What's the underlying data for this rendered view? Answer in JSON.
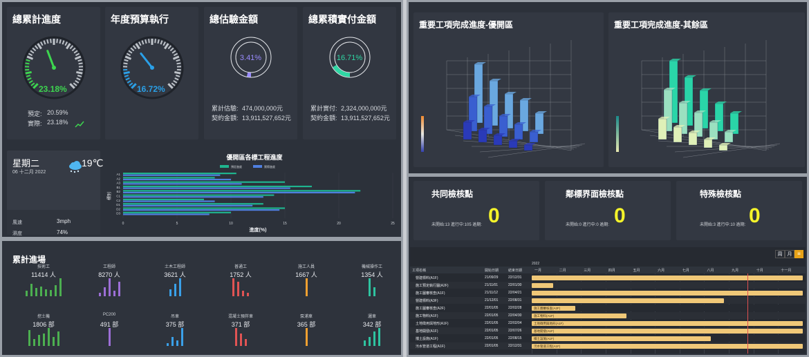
{
  "kpis": [
    {
      "title": "總累計進度",
      "value": "23.18%",
      "lines": [
        {
          "label": "預定:",
          "value": "20.59%"
        },
        {
          "label": "實際:",
          "value": "23.18%"
        }
      ]
    },
    {
      "title": "年度預算執行",
      "value": "16.72%"
    },
    {
      "title": "總估驗金額",
      "value": "3.41%",
      "lines": [
        {
          "label": "累計估驗:",
          "value": "474,000,000元"
        },
        {
          "label": "契約金額:",
          "value": "13,911,527,652元"
        }
      ]
    },
    {
      "title": "總累積實付金額",
      "value": "16.71%",
      "lines": [
        {
          "label": "累計實付:",
          "value": "2,324,000,000元"
        },
        {
          "label": "契約金額:",
          "value": "13,911,527,652元"
        }
      ]
    }
  ],
  "weather": {
    "weekday": "星期二",
    "date": "06 十二月 2022",
    "temp": "19℃",
    "rows": [
      {
        "label": "風速",
        "value": "3mph"
      },
      {
        "label": "濕度",
        "value": "74%"
      }
    ]
  },
  "bar_chart": {
    "title": "優開區各標工程進度",
    "legend": [
      "預定進度",
      "實際進度"
    ],
    "ylabel": "標別",
    "xlabel": "進度(%)",
    "ticks": [
      "0",
      "5",
      "10",
      "15",
      "20",
      "25"
    ],
    "categories": [
      "A1",
      "A2",
      "A3",
      "B1",
      "B2",
      "C1",
      "C2",
      "D1",
      "D2",
      "D3"
    ],
    "colors": {
      "planned": "#1fb48e",
      "actual": "#4f7fe0"
    }
  },
  "chart_data": {
    "type": "bar",
    "title": "優開區各標工程進度",
    "xlabel": "進度(%)",
    "ylabel": "標別",
    "categories": [
      "A1",
      "A2",
      "A3",
      "B1",
      "B2",
      "C1",
      "C2",
      "D1",
      "D2",
      "D3"
    ],
    "xlim": [
      0,
      25
    ],
    "series": [
      {
        "name": "預定進度",
        "values": [
          10.5,
          8.5,
          15,
          17.5,
          22,
          14,
          7.5,
          13,
          15,
          10
        ]
      },
      {
        "name": "實際進度",
        "values": [
          9,
          10,
          11,
          15.5,
          21.5,
          13,
          8.5,
          12,
          14.5,
          8
        ]
      }
    ]
  },
  "attendance": {
    "title": "累計進場",
    "items": [
      {
        "name": "技術工",
        "value": "11414 人",
        "bars": [
          0.3,
          0.7,
          0.45,
          0.55,
          0.4,
          0.35,
          0.6,
          1.0
        ],
        "color": "#4caf50"
      },
      {
        "name": "工程師",
        "value": "8270 人",
        "bars": [
          0.2,
          0.5,
          1.0,
          0.3,
          0.8
        ],
        "color": "#9c6fd6"
      },
      {
        "name": "土木工程師",
        "value": "3621 人",
        "bars": [
          0.4,
          0.7,
          1.0
        ],
        "color": "#3aa0e8"
      },
      {
        "name": "普通工",
        "value": "1752 人",
        "bars": [
          1.0,
          0.8,
          0.3,
          0.2
        ],
        "color": "#e05454"
      },
      {
        "name": "施工人員",
        "value": "1667 人",
        "bars": [
          1.0
        ],
        "color": "#f0a030"
      },
      {
        "name": "機械操作工",
        "value": "1354 人",
        "bars": [
          1.0,
          0.5
        ],
        "color": "#2ec3a0"
      },
      {
        "name": "挖土機",
        "value": "1806 部",
        "bars": [
          0.9,
          0.4,
          0.6,
          0.7,
          1.0,
          0.5,
          0.8
        ],
        "color": "#4caf50"
      },
      {
        "name": "PC200",
        "value": "491 部",
        "bars": [
          1.0
        ],
        "color": "#9c6fd6"
      },
      {
        "name": "吊車",
        "value": "375 部",
        "bars": [
          0.15,
          0.5,
          0.3,
          1.0
        ],
        "color": "#3aa0e8"
      },
      {
        "name": "混凝土預拌車",
        "value": "371 部",
        "bars": [
          1.0,
          0.7,
          0.4
        ],
        "color": "#e05454"
      },
      {
        "name": "泵浦車",
        "value": "365 部",
        "bars": [
          1.0
        ],
        "color": "#f0a030"
      },
      {
        "name": "灑車",
        "value": "342 部",
        "bars": [
          0.3,
          0.5,
          0.8,
          1.0
        ],
        "color": "#2ec3a0"
      }
    ]
  },
  "charts3d": [
    {
      "title": "重要工項完成進度-優開區",
      "scale": {
        "max": "75",
        "mid": "50",
        "low": "25",
        "zero": "0"
      }
    },
    {
      "title": "重要工項完成進度-其餘區",
      "scale": {
        "max": "75",
        "mid": "50",
        "low": "25",
        "zero": "0"
      }
    }
  ],
  "checkpoints": [
    {
      "title": "共同檢核點",
      "sub": "未開始:13  進行中:105  逾期:",
      "value": "0"
    },
    {
      "title": "鄰標界面檢核點",
      "sub": "未開始:0  進行中:0  逾期:",
      "value": "0"
    },
    {
      "title": "特殊檢核點",
      "sub": "未開始:3  進行中:10  逾期:",
      "value": "0"
    }
  ],
  "gantt": {
    "buttons": [
      "周",
      "月"
    ],
    "menu_icon": "≡",
    "year": "2022",
    "headers": [
      "工項名稱",
      "開始日期",
      "結束日期"
    ],
    "months": [
      "一月",
      "二月",
      "三月",
      "四月",
      "五月",
      "六月",
      "七月",
      "八月",
      "九月",
      "十月",
      "十一月"
    ],
    "rows": [
      {
        "name": "營建標料(A1F)",
        "start": "21/09/29",
        "end": "22/12/31",
        "bar_start": 0,
        "bar_end": 1.0,
        "label": ""
      },
      {
        "name": "施工預定執行圖(A2F)",
        "start": "21/11/01",
        "end": "22/01/30",
        "bar_start": 0,
        "bar_end": 0.08,
        "label": ""
      },
      {
        "name": "施工圖審核查(A1F)",
        "start": "21/11/12",
        "end": "22/04/21",
        "bar_start": 0,
        "bar_end": 1.0,
        "label": ""
      },
      {
        "name": "營建標料(A3F)",
        "start": "21/12/01",
        "end": "22/08/31",
        "bar_start": 0,
        "bar_end": 0.71,
        "label": ""
      },
      {
        "name": "施工圖審核查(A2F)",
        "start": "22/01/05",
        "end": "22/02/28",
        "bar_start": 0,
        "bar_end": 0.16,
        "label": "施工圖審核查(A2F)"
      },
      {
        "name": "施工物料(A1F)",
        "start": "22/01/05",
        "end": "22/04/30",
        "bar_start": 0,
        "bar_end": 0.35,
        "label": "施工物料(A1F)"
      },
      {
        "name": "土地徵用與地形(A1F)",
        "start": "22/01/05",
        "end": "22/02/04",
        "bar_start": 0,
        "bar_end": 1.0,
        "label": "土地徵用與地形(A1F)"
      },
      {
        "name": "基地開發(A1F)",
        "start": "22/01/05",
        "end": "22/07/26",
        "bar_start": 0,
        "bar_end": 1.0,
        "label": "基地開發(A1F)"
      },
      {
        "name": "擋土設施(A1F)",
        "start": "22/01/05",
        "end": "22/08/15",
        "bar_start": 0,
        "bar_end": 0.66,
        "label": "擋土設施(A1F)"
      },
      {
        "name": "污水管道工程(A1F)",
        "start": "22/01/05",
        "end": "22/12/31",
        "bar_start": 0,
        "bar_end": 1.0,
        "label": "污水管道工程(A1F)"
      }
    ]
  }
}
